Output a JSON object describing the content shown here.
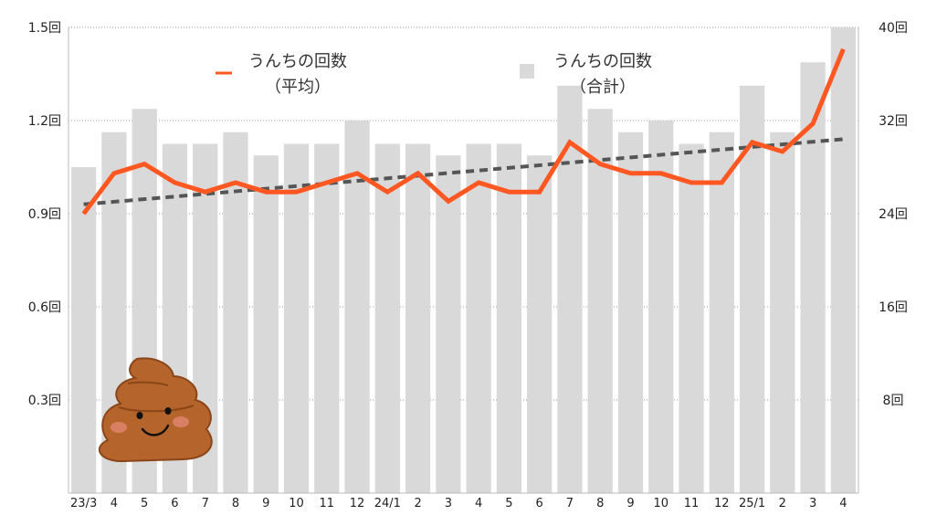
{
  "chart_data": {
    "type": "bar+line",
    "categories": [
      "23/3",
      "4",
      "5",
      "6",
      "7",
      "8",
      "9",
      "10",
      "11",
      "12",
      "24/1",
      "2",
      "3",
      "4",
      "5",
      "6",
      "7",
      "8",
      "9",
      "10",
      "11",
      "12",
      "25/1",
      "2",
      "3",
      "4"
    ],
    "series": [
      {
        "name": "うんちの回数（合計）",
        "kind": "bar",
        "axis": "right",
        "color": "#d9d9d9",
        "values": [
          28,
          31,
          33,
          30,
          30,
          31,
          29,
          30,
          30,
          32,
          30,
          30,
          29,
          30,
          30,
          29,
          35,
          33,
          31,
          32,
          30,
          31,
          35,
          31,
          37,
          40
        ]
      },
      {
        "name": "うんちの回数（平均）",
        "kind": "line",
        "axis": "left",
        "color": "#ff5722",
        "values": [
          0.9,
          1.03,
          1.06,
          1.0,
          0.97,
          1.0,
          0.97,
          0.97,
          1.0,
          1.03,
          0.97,
          1.03,
          0.94,
          1.0,
          0.97,
          0.97,
          1.13,
          1.06,
          1.03,
          1.03,
          1.0,
          1.0,
          1.13,
          1.1,
          1.19,
          1.43
        ]
      }
    ],
    "trendline": {
      "start": 0.93,
      "end": 1.14,
      "color": "#555555",
      "style": "dashed"
    },
    "left_axis": {
      "ylim": [
        0,
        1.5
      ],
      "ticks": [
        "0.3回",
        "0.6回",
        "0.9回",
        "1.2回",
        "1.5回"
      ],
      "tick_values": [
        0.3,
        0.6,
        0.9,
        1.2,
        1.5
      ]
    },
    "right_axis": {
      "ylim": [
        0,
        40
      ],
      "ticks": [
        "8回",
        "16回",
        "24回",
        "32回",
        "40回"
      ],
      "tick_values": [
        8,
        16,
        24,
        32,
        40
      ]
    },
    "grid": true,
    "legend": [
      {
        "line1": "うんちの回数",
        "line2": "（平均）",
        "marker": "line",
        "color": "#ff5722"
      },
      {
        "line1": "うんちの回数",
        "line2": "（合計）",
        "marker": "square",
        "color": "#d9d9d9"
      }
    ],
    "legend_position": "top",
    "decoration": "poop-illustration"
  }
}
